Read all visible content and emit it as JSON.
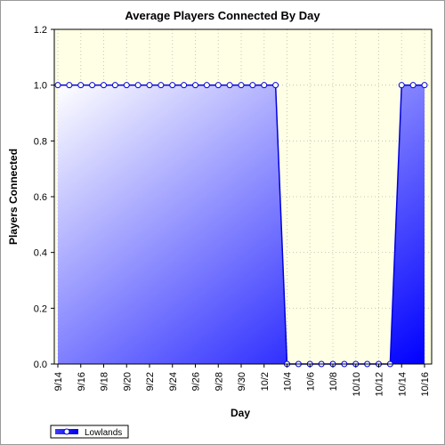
{
  "chart_data": {
    "type": "area",
    "title": "Average Players Connected By Day",
    "xlabel": "Day",
    "ylabel": "Players Connected",
    "ylim": [
      0,
      1.2
    ],
    "yticks": [
      "0.0",
      "0.2",
      "0.4",
      "0.6",
      "0.8",
      "1.0",
      "1.2"
    ],
    "grid": true,
    "legend_position": "bottom-left",
    "plot_background": "#ffffe6",
    "x": [
      "9/14",
      "9/15",
      "9/16",
      "9/17",
      "9/18",
      "9/19",
      "9/20",
      "9/21",
      "9/22",
      "9/23",
      "9/24",
      "9/25",
      "9/26",
      "9/27",
      "9/28",
      "9/29",
      "9/30",
      "10/1",
      "10/2",
      "10/3",
      "10/4",
      "10/5",
      "10/6",
      "10/7",
      "10/8",
      "10/9",
      "10/10",
      "10/11",
      "10/12",
      "10/13",
      "10/14",
      "10/15",
      "10/16"
    ],
    "xticks": [
      "9/14",
      "9/16",
      "9/18",
      "9/20",
      "9/22",
      "9/24",
      "9/26",
      "9/28",
      "9/30",
      "10/2",
      "10/4",
      "10/6",
      "10/8",
      "10/10",
      "10/12",
      "10/14",
      "10/16"
    ],
    "series": [
      {
        "name": "Lowlands",
        "color": "#1a1aff",
        "values": [
          1,
          1,
          1,
          1,
          1,
          1,
          1,
          1,
          1,
          1,
          1,
          1,
          1,
          1,
          1,
          1,
          1,
          1,
          1,
          1,
          0,
          0,
          0,
          0,
          0,
          0,
          0,
          0,
          0,
          0,
          1,
          1,
          1
        ]
      }
    ]
  }
}
